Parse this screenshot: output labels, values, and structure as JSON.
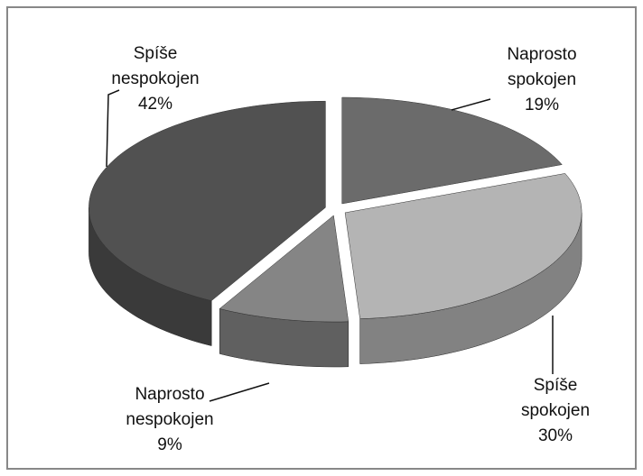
{
  "chart_data": {
    "type": "pie",
    "categories": [
      "Naprosto spokojen",
      "Spíše spokojen",
      "Naprosto nespokojen",
      "Spíše nespokojen"
    ],
    "values": [
      19,
      30,
      9,
      42
    ],
    "value_labels": [
      "19%",
      "30%",
      "9%",
      "42%"
    ],
    "colors": [
      "#6b6b6b",
      "#b4b4b4",
      "#858585",
      "#515151"
    ]
  }
}
